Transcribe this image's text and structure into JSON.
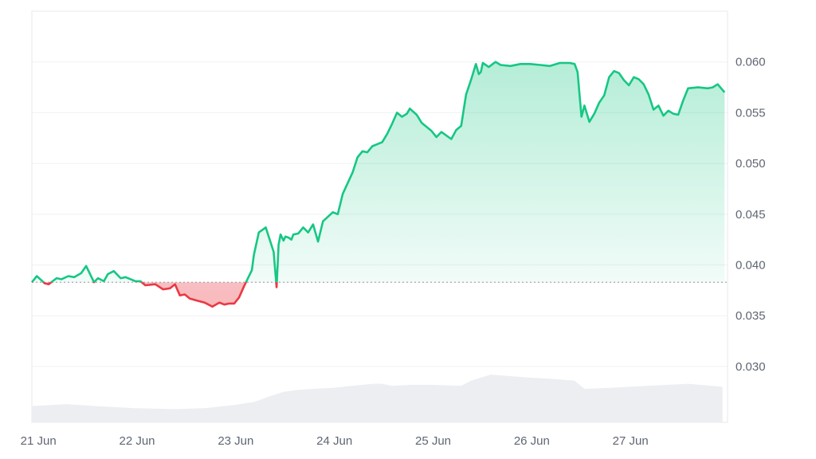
{
  "chart_data": {
    "type": "area",
    "title": "",
    "xlabel": "",
    "ylabel": "",
    "x_ticks": [
      "21 Jun",
      "22 Jun",
      "23 Jun",
      "24 Jun",
      "25 Jun",
      "26 Jun",
      "27 Jun"
    ],
    "y_ticks": [
      "0.060",
      "0.055",
      "0.050",
      "0.045",
      "0.040",
      "0.035",
      "0.030"
    ],
    "x_range_days": [
      20.95,
      28.0
    ],
    "ylim": [
      0.0245,
      0.065
    ],
    "baseline": 0.0383,
    "grid": true,
    "colors": {
      "up": "#16c784",
      "down": "#ea3943",
      "volume": "#eceef2",
      "grid": "#eff1f4",
      "baseline": "#9aa0a8"
    },
    "price_series": {
      "x_days": [
        20.95,
        21.0,
        21.08,
        21.12,
        21.2,
        21.25,
        21.32,
        21.38,
        21.45,
        21.5,
        21.58,
        21.62,
        21.68,
        21.72,
        21.78,
        21.85,
        21.9,
        22.0,
        22.05,
        22.1,
        22.2,
        22.28,
        22.35,
        22.4,
        22.45,
        22.5,
        22.55,
        22.62,
        22.7,
        22.78,
        22.85,
        22.9,
        22.95,
        23.0,
        23.05,
        23.1,
        23.18,
        23.2,
        23.25,
        23.32,
        23.4,
        23.43,
        23.45,
        23.47,
        23.5,
        23.52,
        23.55,
        23.58,
        23.6,
        23.65,
        23.7,
        23.75,
        23.8,
        23.85,
        23.9,
        24.0,
        24.05,
        24.1,
        24.2,
        24.25,
        24.3,
        24.35,
        24.4,
        24.45,
        24.5,
        24.55,
        24.6,
        24.65,
        24.7,
        24.75,
        24.78,
        24.85,
        24.9,
        25.0,
        25.05,
        25.1,
        25.2,
        25.25,
        25.3,
        25.35,
        25.4,
        25.45,
        25.48,
        25.5,
        25.52,
        25.55,
        25.58,
        25.62,
        25.65,
        25.7,
        25.8,
        25.9,
        26.0,
        26.1,
        26.2,
        26.3,
        26.4,
        26.45,
        26.48,
        26.52,
        26.55,
        26.6,
        26.65,
        26.7,
        26.75,
        26.8,
        26.85,
        26.9,
        26.95,
        27.0,
        27.05,
        27.1,
        27.15,
        27.2,
        27.25,
        27.3,
        27.35,
        27.4,
        27.45,
        27.5,
        27.55,
        27.6,
        27.7,
        27.8,
        27.85,
        27.9,
        27.97
      ],
      "y": [
        0.0383,
        0.0389,
        0.0382,
        0.0381,
        0.0387,
        0.0386,
        0.0389,
        0.0388,
        0.0392,
        0.0399,
        0.0383,
        0.0387,
        0.0384,
        0.0391,
        0.0394,
        0.0387,
        0.0388,
        0.0384,
        0.0384,
        0.038,
        0.0381,
        0.0376,
        0.0377,
        0.0381,
        0.037,
        0.0371,
        0.0367,
        0.0365,
        0.0363,
        0.0359,
        0.0363,
        0.0361,
        0.0362,
        0.0362,
        0.0368,
        0.0379,
        0.0395,
        0.041,
        0.0432,
        0.0437,
        0.0413,
        0.0378,
        0.042,
        0.043,
        0.0424,
        0.0428,
        0.0427,
        0.0425,
        0.043,
        0.0431,
        0.0437,
        0.0432,
        0.044,
        0.0423,
        0.0443,
        0.0452,
        0.045,
        0.047,
        0.0491,
        0.0506,
        0.0512,
        0.0511,
        0.0517,
        0.0519,
        0.0521,
        0.0529,
        0.0539,
        0.055,
        0.0546,
        0.0549,
        0.0554,
        0.0548,
        0.054,
        0.0532,
        0.0526,
        0.0531,
        0.0524,
        0.0533,
        0.0537,
        0.0568,
        0.0582,
        0.0598,
        0.0588,
        0.059,
        0.0599,
        0.0597,
        0.0595,
        0.0598,
        0.06,
        0.0597,
        0.0596,
        0.0598,
        0.0598,
        0.0597,
        0.0596,
        0.0599,
        0.0599,
        0.0598,
        0.059,
        0.0546,
        0.0557,
        0.0541,
        0.0549,
        0.056,
        0.0567,
        0.0585,
        0.0591,
        0.0589,
        0.0582,
        0.0577,
        0.0585,
        0.0583,
        0.0578,
        0.0568,
        0.0553,
        0.0557,
        0.0547,
        0.0552,
        0.0549,
        0.0548,
        0.0562,
        0.0574,
        0.0575,
        0.0574,
        0.0575,
        0.0578,
        0.057
      ]
    },
    "volume_series": {
      "x_days": [
        20.95,
        21.3,
        21.6,
        22.0,
        22.4,
        22.7,
        23.0,
        23.2,
        23.4,
        23.5,
        23.65,
        23.8,
        24.0,
        24.2,
        24.4,
        24.5,
        24.6,
        24.8,
        25.0,
        25.3,
        25.4,
        25.5,
        25.6,
        26.0,
        26.2,
        26.45,
        26.55,
        26.8,
        27.2,
        27.6,
        27.95
      ],
      "y": [
        0.0261,
        0.0263,
        0.0261,
        0.0259,
        0.0258,
        0.0259,
        0.0262,
        0.0265,
        0.0272,
        0.0275,
        0.0277,
        0.0278,
        0.0279,
        0.0281,
        0.0283,
        0.0283,
        0.0281,
        0.0282,
        0.0282,
        0.0281,
        0.0286,
        0.0289,
        0.0292,
        0.0289,
        0.0288,
        0.0286,
        0.0278,
        0.0279,
        0.0281,
        0.0283,
        0.028
      ]
    }
  }
}
